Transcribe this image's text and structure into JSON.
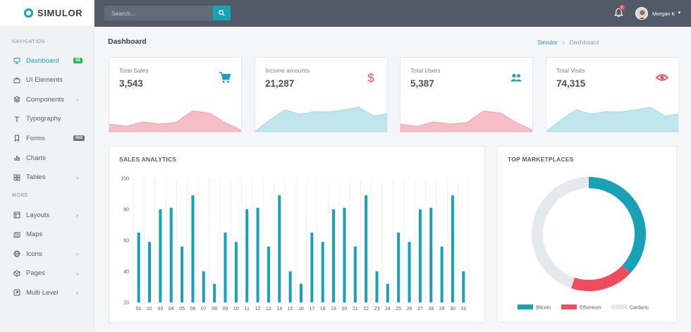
{
  "sidebar": {
    "logo": "SIMULOR",
    "nav_heading": "NAVIGATION",
    "more_heading": "MORE",
    "items": [
      {
        "label": "Dashboard",
        "icon": "monitor-icon",
        "active": true,
        "badge": "08",
        "badge_color": "#2dbb54"
      },
      {
        "label": "UI Elements",
        "icon": "briefcase-icon"
      },
      {
        "label": "Components",
        "icon": "layers-icon",
        "chevron": "›"
      },
      {
        "label": "Typography",
        "icon": "text-icon"
      },
      {
        "label": "Forms",
        "icon": "bookmark-icon",
        "badge": "Hot",
        "badge_color": "#6c757d"
      },
      {
        "label": "Charts",
        "icon": "bar-chart-icon"
      },
      {
        "label": "Tables",
        "icon": "grid-icon",
        "chevron": "›"
      }
    ],
    "more_items": [
      {
        "label": "Layouts",
        "icon": "layout-icon",
        "chevron": "›"
      },
      {
        "label": "Maps",
        "icon": "map-icon"
      },
      {
        "label": "Icons",
        "icon": "globe-icon",
        "chevron": "›"
      },
      {
        "label": "Pages",
        "icon": "package-icon",
        "chevron": "›"
      },
      {
        "label": "Multi Level",
        "icon": "share-icon",
        "chevron": "›"
      }
    ]
  },
  "topbar": {
    "search_placeholder": "Search...",
    "notification_count": "2",
    "user_name": "Morgan K"
  },
  "page": {
    "title": "Dashboard",
    "breadcrumb": [
      "Simulor",
      "Dashboard"
    ],
    "breadcrumb_separator": "›"
  },
  "stats": [
    {
      "label": "Total Sales",
      "value": "3,543",
      "icon": "cart-icon",
      "color": "#17a2b8",
      "spark_color": "#f2a7b3",
      "spark": [
        0.35,
        0.25,
        0.45,
        0.35,
        0.42,
        0.95,
        0.85,
        0.4,
        0.05
      ]
    },
    {
      "label": "Income amounts",
      "value": "21,287",
      "icon": "dollar-icon",
      "color": "#ef4d5e",
      "spark_color": "#a8dde6",
      "spark": [
        0.02,
        0.55,
        1.0,
        0.8,
        0.92,
        0.9,
        1.0,
        1.12,
        0.72,
        0.82
      ]
    },
    {
      "label": "Total Users",
      "value": "5,387",
      "icon": "users-icon",
      "color": "#17a2b8",
      "spark_color": "#f2a7b3",
      "spark": [
        0.35,
        0.25,
        0.45,
        0.35,
        0.42,
        0.95,
        0.85,
        0.4,
        0.05
      ]
    },
    {
      "label": "Total Visits",
      "value": "74,315",
      "icon": "eye-icon",
      "color": "#ef4d5e",
      "spark_color": "#a8dde6",
      "spark": [
        0.02,
        0.55,
        1.0,
        0.8,
        0.92,
        0.9,
        1.0,
        1.12,
        0.72,
        0.82
      ]
    }
  ],
  "sales_analytics": {
    "title": "SALES ANALYTICS"
  },
  "top_marketplaces": {
    "title": "TOP MARKETPLACES"
  },
  "chart_data": [
    {
      "type": "bar",
      "title": "SALES ANALYTICS",
      "categories": [
        "01",
        "02",
        "03",
        "04",
        "05",
        "06",
        "07",
        "08",
        "09",
        "10",
        "11",
        "12",
        "13",
        "14",
        "15",
        "16",
        "17",
        "18",
        "19",
        "20",
        "21",
        "22",
        "23",
        "24",
        "25",
        "26",
        "27",
        "28",
        "29",
        "30",
        "31"
      ],
      "values": [
        65,
        59,
        80,
        81,
        56,
        89,
        40,
        32,
        65,
        59,
        80,
        81,
        56,
        89,
        40,
        32,
        65,
        59,
        80,
        81,
        56,
        89,
        40,
        32,
        65,
        59,
        80,
        81,
        56,
        89,
        40
      ],
      "ylim": [
        20,
        100
      ],
      "yticks": [
        20,
        40,
        60,
        80,
        100
      ],
      "color": "#17a2b8",
      "grid": "vertical"
    },
    {
      "type": "pie",
      "title": "TOP MARKETPLACES",
      "style": "doughnut",
      "legend_position": "bottom",
      "categories": [
        "Bitcoin",
        "Ethereum",
        "Cardano"
      ],
      "values": [
        37,
        18,
        45
      ],
      "colors": [
        "#17a2b8",
        "#ef4d5e",
        "#e5e9ee"
      ]
    }
  ]
}
